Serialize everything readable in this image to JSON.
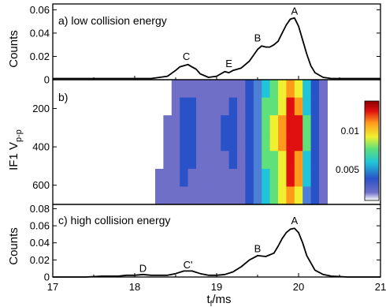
{
  "chart_data": [
    {
      "type": "line",
      "panel_label": "a) low collision energy",
      "ylabel": "Counts",
      "xlim": [
        17,
        21
      ],
      "ylim": [
        0,
        0.065
      ],
      "yticks": [
        "0",
        "0.02",
        "0.04",
        "0.06"
      ],
      "series": [
        {
          "x": [
            17.0,
            17.2,
            17.4,
            17.6,
            17.8,
            18.0,
            18.2,
            18.4,
            18.5,
            18.55,
            18.6,
            18.65,
            18.7,
            18.75,
            18.8,
            18.9,
            19.0,
            19.05,
            19.1,
            19.15,
            19.2,
            19.3,
            19.4,
            19.5,
            19.55,
            19.6,
            19.65,
            19.7,
            19.75,
            19.8,
            19.85,
            19.9,
            19.95,
            20.0,
            20.05,
            20.1,
            20.15,
            20.2,
            20.3,
            20.4,
            20.6,
            20.8,
            21.0
          ],
          "y": [
            0.001,
            0.001,
            0.001,
            0.001,
            0.001,
            0.001,
            0.001,
            0.003,
            0.008,
            0.011,
            0.012,
            0.013,
            0.011,
            0.009,
            0.005,
            0.002,
            0.003,
            0.005,
            0.007,
            0.006,
            0.008,
            0.01,
            0.016,
            0.026,
            0.029,
            0.028,
            0.028,
            0.03,
            0.033,
            0.04,
            0.047,
            0.052,
            0.053,
            0.046,
            0.034,
            0.022,
            0.012,
            0.006,
            0.002,
            0.001,
            0.001,
            0.001,
            0.001
          ]
        }
      ],
      "annotations": [
        {
          "text": "A",
          "x": 19.95,
          "y": 0.056
        },
        {
          "text": "B",
          "x": 19.5,
          "y": 0.033
        },
        {
          "text": "C",
          "x": 18.63,
          "y": 0.017
        },
        {
          "text": "E",
          "x": 19.15,
          "y": 0.011
        }
      ]
    },
    {
      "type": "heatmap",
      "panel_label": "b)",
      "ylabel": "IF1 Vp-p",
      "ylabel_main": "IF1 V",
      "ylabel_sub": "p-p",
      "xlim": [
        17,
        21
      ],
      "ylim": [
        700,
        50
      ],
      "yticks": [
        "200",
        "400",
        "600"
      ],
      "colorbar": {
        "ticks": [
          "0.01",
          "0.005"
        ],
        "range": [
          0,
          0.014
        ]
      },
      "colors": [
        "#ffffff",
        "#6f6fc8",
        "#2a52c8",
        "#4d7fd6",
        "#1fc4d8",
        "#5fe07a",
        "#f0f030",
        "#ff9a1c",
        "#e01010",
        "#8b0000"
      ],
      "x": [
        18.0,
        18.1,
        18.2,
        18.3,
        18.4,
        18.5,
        18.6,
        18.7,
        18.8,
        18.9,
        19.0,
        19.1,
        19.2,
        19.3,
        19.4,
        19.5,
        19.6,
        19.7,
        19.8,
        19.9,
        20.0,
        20.1,
        20.2,
        20.3,
        20.4,
        20.5,
        20.6
      ],
      "rows_V": [
        100,
        200,
        300,
        400,
        500,
        600,
        680
      ],
      "intensity": [
        [
          0.0,
          0.0,
          0.0,
          0.0,
          0.0,
          0.001,
          0.002,
          0.002,
          0.002,
          0.002,
          0.002,
          0.002,
          0.002,
          0.002,
          0.003,
          0.005,
          0.006,
          0.007,
          0.009,
          0.011,
          0.01,
          0.006,
          0.003,
          0.001,
          0.0,
          0.0,
          0.0
        ],
        [
          0.0,
          0.0,
          0.0,
          0.0,
          0.0,
          0.002,
          0.003,
          0.003,
          0.002,
          0.002,
          0.002,
          0.002,
          0.003,
          0.002,
          0.003,
          0.005,
          0.007,
          0.008,
          0.01,
          0.012,
          0.011,
          0.006,
          0.003,
          0.001,
          0.0,
          0.0,
          0.0
        ],
        [
          0.0,
          0.0,
          0.0,
          0.0,
          0.001,
          0.002,
          0.003,
          0.003,
          0.002,
          0.002,
          0.002,
          0.003,
          0.003,
          0.002,
          0.003,
          0.005,
          0.007,
          0.009,
          0.011,
          0.013,
          0.012,
          0.007,
          0.003,
          0.001,
          0.0,
          0.0,
          0.0
        ],
        [
          0.0,
          0.0,
          0.0,
          0.0,
          0.001,
          0.002,
          0.003,
          0.003,
          0.002,
          0.002,
          0.002,
          0.003,
          0.003,
          0.002,
          0.003,
          0.005,
          0.007,
          0.009,
          0.011,
          0.013,
          0.012,
          0.007,
          0.003,
          0.001,
          0.0,
          0.0,
          0.0
        ],
        [
          0.0,
          0.0,
          0.0,
          0.0,
          0.001,
          0.002,
          0.003,
          0.003,
          0.002,
          0.002,
          0.002,
          0.002,
          0.003,
          0.002,
          0.003,
          0.005,
          0.007,
          0.008,
          0.01,
          0.012,
          0.011,
          0.006,
          0.003,
          0.001,
          0.0,
          0.0,
          0.0
        ],
        [
          0.0,
          0.0,
          0.0,
          0.001,
          0.001,
          0.002,
          0.003,
          0.002,
          0.002,
          0.002,
          0.002,
          0.002,
          0.002,
          0.002,
          0.003,
          0.005,
          0.006,
          0.008,
          0.01,
          0.012,
          0.011,
          0.006,
          0.003,
          0.001,
          0.0,
          0.0,
          0.0
        ],
        [
          0.0,
          0.0,
          0.0,
          0.001,
          0.001,
          0.002,
          0.002,
          0.002,
          0.002,
          0.002,
          0.002,
          0.002,
          0.002,
          0.002,
          0.003,
          0.004,
          0.006,
          0.007,
          0.009,
          0.011,
          0.01,
          0.005,
          0.003,
          0.001,
          0.0,
          0.0,
          0.0
        ]
      ]
    },
    {
      "type": "line",
      "panel_label": "c) high collision energy",
      "ylabel": "Counts",
      "xlabel": "tf/ms",
      "xlabel_main": "t",
      "xlabel_sub": "f",
      "xlabel_rest": "/ms",
      "xlim": [
        17,
        21
      ],
      "ylim": [
        0,
        0.085
      ],
      "xticks": [
        "17",
        "18",
        "19",
        "20",
        "21"
      ],
      "yticks": [
        "0",
        "0.02",
        "0.04",
        "0.06",
        "0.08"
      ],
      "series": [
        {
          "x": [
            17.0,
            17.2,
            17.4,
            17.6,
            17.8,
            17.9,
            18.0,
            18.1,
            18.2,
            18.3,
            18.4,
            18.5,
            18.6,
            18.7,
            18.8,
            18.9,
            19.0,
            19.1,
            19.2,
            19.3,
            19.4,
            19.5,
            19.6,
            19.7,
            19.75,
            19.8,
            19.85,
            19.9,
            19.95,
            20.0,
            20.05,
            20.1,
            20.2,
            20.3,
            20.4,
            20.6,
            20.8,
            21.0
          ],
          "y": [
            0.0,
            0.0,
            0.0,
            0.001,
            0.001,
            0.002,
            0.002,
            0.003,
            0.002,
            0.002,
            0.002,
            0.004,
            0.007,
            0.007,
            0.004,
            0.002,
            0.002,
            0.003,
            0.006,
            0.012,
            0.02,
            0.025,
            0.024,
            0.028,
            0.036,
            0.045,
            0.052,
            0.056,
            0.057,
            0.052,
            0.04,
            0.025,
            0.008,
            0.003,
            0.001,
            0.0,
            0.0,
            0.0
          ]
        }
      ],
      "annotations": [
        {
          "text": "A",
          "x": 19.95,
          "y": 0.062
        },
        {
          "text": "B",
          "x": 19.5,
          "y": 0.029
        },
        {
          "text": "C'",
          "x": 18.65,
          "y": 0.01
        },
        {
          "text": "D",
          "x": 18.1,
          "y": 0.006
        }
      ]
    }
  ]
}
